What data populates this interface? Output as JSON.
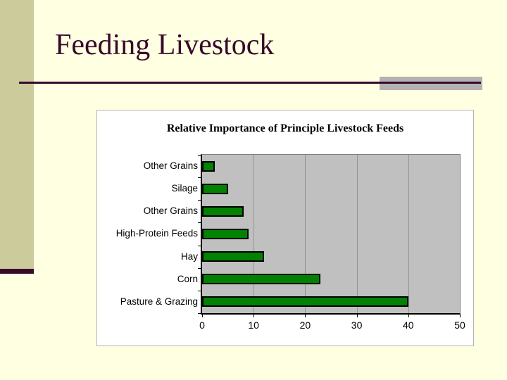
{
  "slide": {
    "title": "Feeding Livestock"
  },
  "colors": {
    "background": "#FFFFE2",
    "sidebar_accent": "#CBCB9B",
    "accent_dark_plum": "#38092B",
    "accent_gray": "#B2B2B2",
    "panel_background": "#FFFFFF",
    "panel_border": "#B3B3B3",
    "plot_background": "#C0C0C0",
    "gridline": "#949494",
    "bar_fill": "#028102",
    "bar_border": "#000000",
    "text": "#000000"
  },
  "chart_data": {
    "type": "bar",
    "orientation": "horizontal",
    "title": "Relative Importance of Principle Livestock Feeds",
    "xlabel": "",
    "ylabel": "",
    "categories": [
      "Other Grains",
      "Silage",
      "Other Grains",
      "High-Protein Feeds",
      "Hay",
      "Corn",
      "Pasture & Grazing"
    ],
    "values": [
      2.5,
      5,
      8,
      9,
      12,
      23,
      40
    ],
    "xlim": [
      0,
      50
    ],
    "x_ticks": [
      0,
      10,
      20,
      30,
      40,
      50
    ],
    "grid": "vertical gridlines at 10, 20, 30, 40",
    "legend": "none"
  }
}
